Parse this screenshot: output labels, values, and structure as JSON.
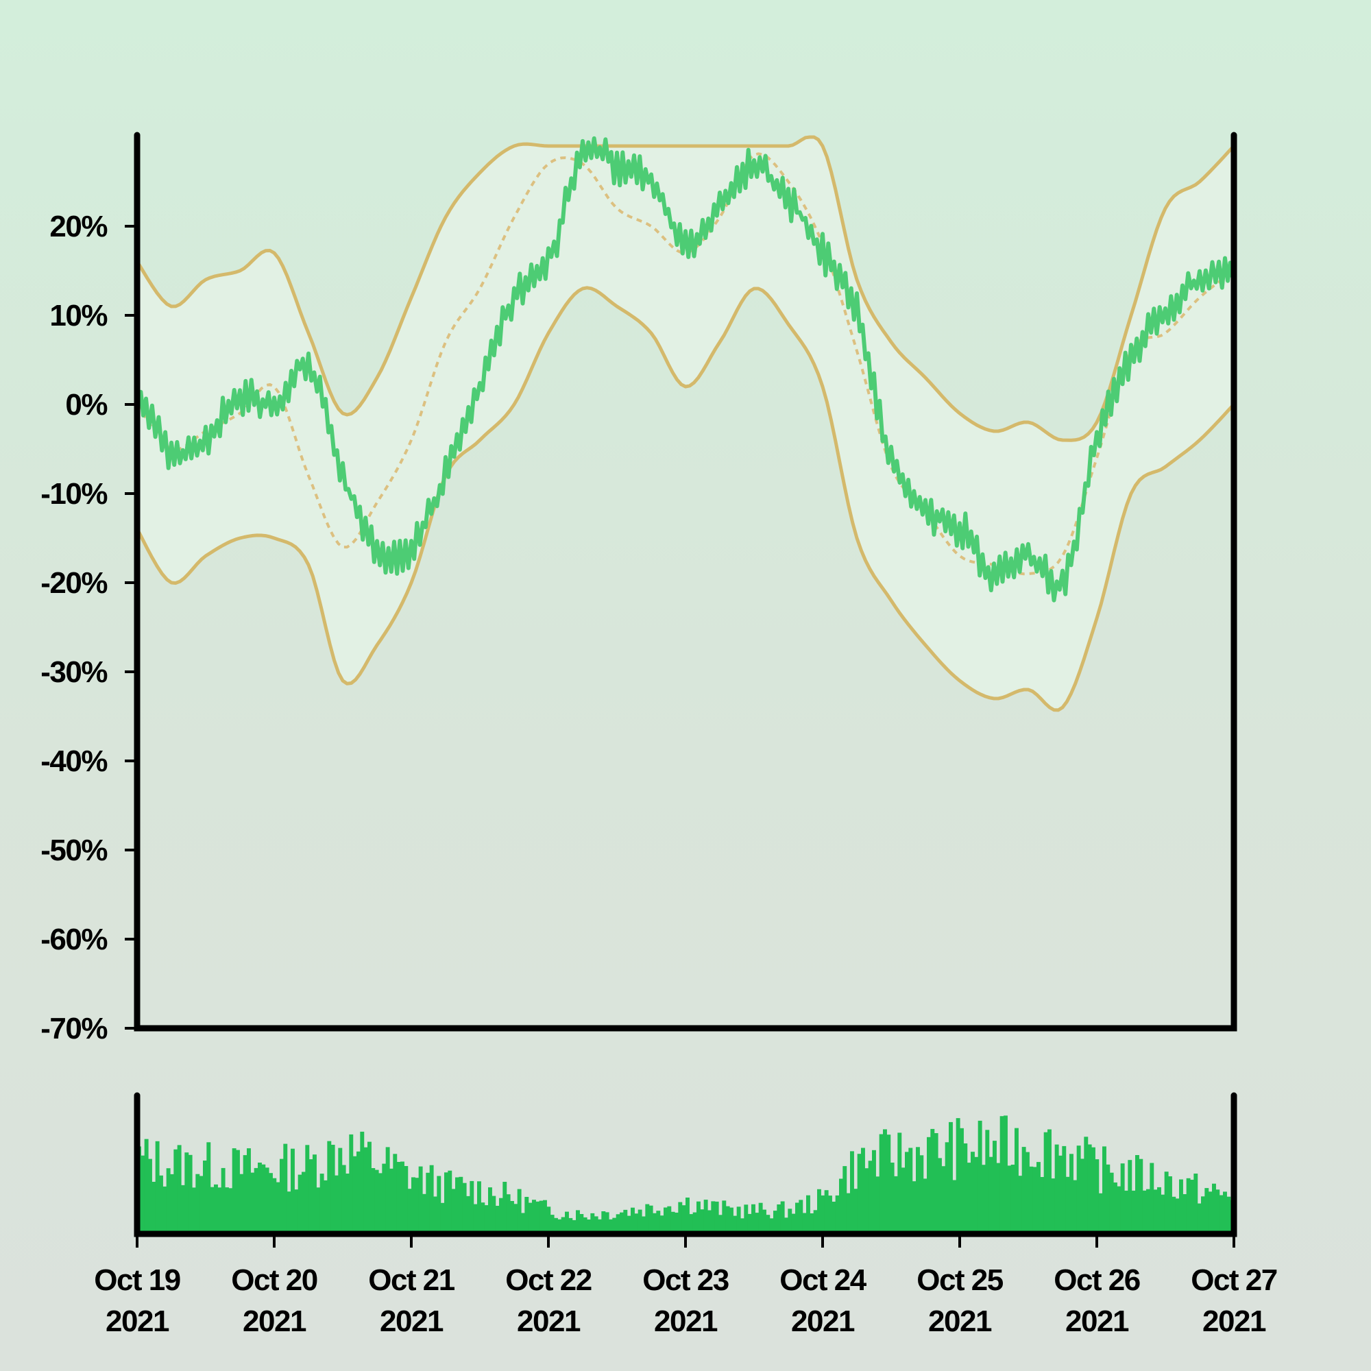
{
  "chart_data": [
    {
      "type": "line",
      "title": "",
      "xlabel": "",
      "ylabel": "",
      "ylim": [
        -70,
        30
      ],
      "y_ticks": [
        "20%",
        "10%",
        "0%",
        "-10%",
        "-20%",
        "-30%",
        "-40%",
        "-50%",
        "-60%",
        "-70%"
      ],
      "y_tick_values": [
        20,
        10,
        0,
        -10,
        -20,
        -30,
        -40,
        -50,
        -60,
        -70
      ],
      "x_range": [
        "2021-10-19",
        "2021-10-27"
      ],
      "grid": false,
      "legend": "none",
      "colors": {
        "price": "#4dcc74",
        "bands": "#d4b96b",
        "band_fill": "#e2f1e4",
        "axis": "#000000"
      },
      "series": [
        {
          "style": "solid-green-line",
          "x": [
            "2021-10-19 00:00",
            "2021-10-19 06:00",
            "2021-10-19 12:00",
            "2021-10-19 18:00",
            "2021-10-20 00:00",
            "2021-10-20 06:00",
            "2021-10-20 12:00",
            "2021-10-20 18:00",
            "2021-10-21 00:00",
            "2021-10-21 06:00",
            "2021-10-21 12:00",
            "2021-10-21 18:00",
            "2021-10-22 00:00",
            "2021-10-22 06:00",
            "2021-10-22 12:00",
            "2021-10-22 18:00",
            "2021-10-23 00:00",
            "2021-10-23 06:00",
            "2021-10-23 12:00",
            "2021-10-23 18:00",
            "2021-10-24 00:00",
            "2021-10-24 06:00",
            "2021-10-24 12:00",
            "2021-10-24 18:00",
            "2021-10-25 00:00",
            "2021-10-25 06:00",
            "2021-10-25 12:00",
            "2021-10-25 18:00",
            "2021-10-26 00:00",
            "2021-10-26 06:00",
            "2021-10-26 12:00",
            "2021-10-26 18:00",
            "2021-10-27 00:00"
          ],
          "y": [
            1,
            -5,
            -4,
            1,
            0,
            4,
            -8,
            -16,
            -16,
            -8,
            2,
            12,
            16,
            28,
            27,
            25,
            18,
            22,
            27,
            23,
            17,
            10,
            -6,
            -12,
            -14,
            -19,
            -17,
            -20,
            -4,
            5,
            10,
            14,
            15
          ]
        },
        {
          "style": "dashed-gold-midline",
          "x": [
            "2021-10-19 00:00",
            "2021-10-19 06:00",
            "2021-10-19 12:00",
            "2021-10-19 18:00",
            "2021-10-20 00:00",
            "2021-10-20 06:00",
            "2021-10-20 12:00",
            "2021-10-20 18:00",
            "2021-10-21 00:00",
            "2021-10-21 06:00",
            "2021-10-21 12:00",
            "2021-10-21 18:00",
            "2021-10-22 00:00",
            "2021-10-22 06:00",
            "2021-10-22 12:00",
            "2021-10-22 18:00",
            "2021-10-23 00:00",
            "2021-10-23 06:00",
            "2021-10-23 12:00",
            "2021-10-23 18:00",
            "2021-10-24 00:00",
            "2021-10-24 06:00",
            "2021-10-24 12:00",
            "2021-10-24 18:00",
            "2021-10-25 00:00",
            "2021-10-25 06:00",
            "2021-10-25 12:00",
            "2021-10-25 18:00",
            "2021-10-26 00:00",
            "2021-10-26 06:00",
            "2021-10-26 12:00",
            "2021-10-26 18:00",
            "2021-10-27 00:00"
          ],
          "y": [
            0,
            -5,
            -3,
            -1,
            2,
            -8,
            -16,
            -11,
            -4,
            7,
            13,
            21,
            27,
            27,
            22,
            20,
            17,
            21,
            28,
            25,
            18,
            6,
            -7,
            -12,
            -17,
            -18,
            -19,
            -17,
            -6,
            6,
            8,
            12,
            15
          ]
        },
        {
          "style": "gold-upper-band",
          "x": [
            "2021-10-19 00:00",
            "2021-10-19 06:00",
            "2021-10-19 12:00",
            "2021-10-19 18:00",
            "2021-10-20 00:00",
            "2021-10-20 06:00",
            "2021-10-20 12:00",
            "2021-10-20 18:00",
            "2021-10-21 00:00",
            "2021-10-21 06:00",
            "2021-10-21 12:00",
            "2021-10-21 18:00",
            "2021-10-22 00:00",
            "2021-10-22 06:00",
            "2021-10-22 12:00",
            "2021-10-22 18:00",
            "2021-10-23 00:00",
            "2021-10-23 06:00",
            "2021-10-23 12:00",
            "2021-10-23 18:00",
            "2021-10-24 00:00",
            "2021-10-24 06:00",
            "2021-10-24 12:00",
            "2021-10-24 18:00",
            "2021-10-25 00:00",
            "2021-10-25 06:00",
            "2021-10-25 12:00",
            "2021-10-25 18:00",
            "2021-10-26 00:00",
            "2021-10-26 06:00",
            "2021-10-26 12:00",
            "2021-10-26 18:00",
            "2021-10-27 00:00"
          ],
          "y": [
            16,
            11,
            14,
            15,
            17,
            8,
            -1,
            3,
            12,
            21,
            26,
            29,
            29,
            29,
            29,
            29,
            29,
            29,
            29,
            29,
            29,
            14,
            7,
            3,
            -1,
            -3,
            -2,
            -4,
            -2,
            10,
            22,
            25,
            29
          ]
        },
        {
          "style": "gold-lower-band",
          "x": [
            "2021-10-19 00:00",
            "2021-10-19 06:00",
            "2021-10-19 12:00",
            "2021-10-19 18:00",
            "2021-10-20 00:00",
            "2021-10-20 06:00",
            "2021-10-20 12:00",
            "2021-10-20 18:00",
            "2021-10-21 00:00",
            "2021-10-21 06:00",
            "2021-10-21 12:00",
            "2021-10-21 18:00",
            "2021-10-22 00:00",
            "2021-10-22 06:00",
            "2021-10-22 12:00",
            "2021-10-22 18:00",
            "2021-10-23 00:00",
            "2021-10-23 06:00",
            "2021-10-23 12:00",
            "2021-10-23 18:00",
            "2021-10-24 00:00",
            "2021-10-24 06:00",
            "2021-10-24 12:00",
            "2021-10-24 18:00",
            "2021-10-25 00:00",
            "2021-10-25 06:00",
            "2021-10-25 12:00",
            "2021-10-25 18:00",
            "2021-10-26 00:00",
            "2021-10-26 06:00",
            "2021-10-26 12:00",
            "2021-10-26 18:00",
            "2021-10-27 00:00"
          ],
          "y": [
            -14,
            -20,
            -17,
            -15,
            -15,
            -18,
            -31,
            -27,
            -20,
            -8,
            -4,
            0,
            8,
            13,
            11,
            8,
            2,
            7,
            13,
            9,
            2,
            -15,
            -22,
            -27,
            -31,
            -33,
            -32,
            -34,
            -24,
            -10,
            -7,
            -4,
            0
          ]
        }
      ]
    },
    {
      "type": "bar",
      "title": "",
      "xlabel": "",
      "ylabel": "",
      "ylim": [
        0,
        12
      ],
      "x_ticks": [
        "Oct 19\n2021",
        "Oct 20\n2021",
        "Oct 21\n2021",
        "Oct 22\n2021",
        "Oct 23\n2021",
        "Oct 24\n2021",
        "Oct 25\n2021",
        "Oct 26\n2021",
        "Oct 27\n2021"
      ],
      "x_tick_lines": [
        [
          "Oct 19",
          "2021"
        ],
        [
          "Oct 20",
          "2021"
        ],
        [
          "Oct 21",
          "2021"
        ],
        [
          "Oct 22",
          "2021"
        ],
        [
          "Oct 23",
          "2021"
        ],
        [
          "Oct 24",
          "2021"
        ],
        [
          "Oct 25",
          "2021"
        ],
        [
          "Oct 26",
          "2021"
        ],
        [
          "Oct 27",
          "2021"
        ]
      ],
      "x_range": [
        "2021-10-19",
        "2021-10-27"
      ],
      "grid": false,
      "colors": {
        "bars": "#22bf55",
        "axis": "#000000"
      },
      "x": [
        "2021-10-19 00:00",
        "2021-10-19 06:00",
        "2021-10-19 12:00",
        "2021-10-19 18:00",
        "2021-10-20 00:00",
        "2021-10-20 06:00",
        "2021-10-20 12:00",
        "2021-10-20 18:00",
        "2021-10-21 00:00",
        "2021-10-21 06:00",
        "2021-10-21 12:00",
        "2021-10-21 18:00",
        "2021-10-22 00:00",
        "2021-10-22 06:00",
        "2021-10-22 12:00",
        "2021-10-22 18:00",
        "2021-10-23 00:00",
        "2021-10-23 06:00",
        "2021-10-23 12:00",
        "2021-10-23 18:00",
        "2021-10-24 00:00",
        "2021-10-24 06:00",
        "2021-10-24 12:00",
        "2021-10-24 18:00",
        "2021-10-25 00:00",
        "2021-10-25 06:00",
        "2021-10-25 12:00",
        "2021-10-25 18:00",
        "2021-10-26 00:00",
        "2021-10-26 06:00",
        "2021-10-26 12:00",
        "2021-10-26 18:00",
        "2021-10-27 00:00"
      ],
      "values": [
        7.5,
        7.0,
        6.8,
        6.5,
        6.6,
        6.8,
        8.6,
        7.2,
        5.8,
        4.8,
        4.4,
        3.6,
        2.4,
        1.9,
        2.2,
        2.6,
        3.2,
        2.5,
        2.3,
        2.4,
        3.4,
        7.0,
        7.8,
        8.2,
        8.6,
        8.6,
        8.9,
        8.4,
        6.5,
        6.0,
        5.3,
        4.4,
        3.6
      ]
    }
  ]
}
